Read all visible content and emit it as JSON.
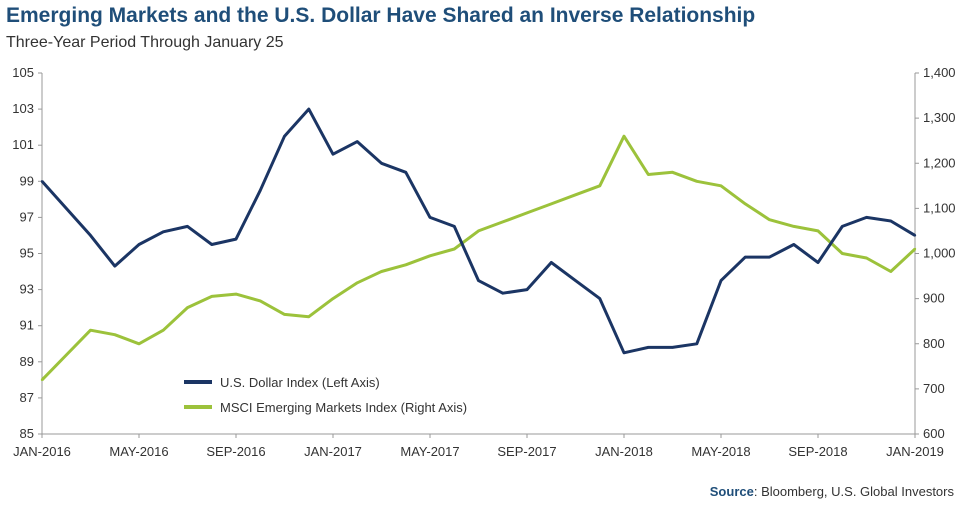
{
  "header": {
    "title": "Emerging Markets and the U.S. Dollar Have Shared an Inverse Relationship",
    "subtitle": "Three-Year Period Through January 25"
  },
  "footer": {
    "source_label": "Source",
    "source_text": ": Bloomberg, U.S. Global Investors"
  },
  "colors": {
    "usd": "#1b3564",
    "msci": "#9cc23b",
    "axis": "#999999"
  },
  "chart_data": {
    "type": "line",
    "title": "Emerging Markets and the U.S. Dollar Have Shared an Inverse Relationship",
    "subtitle": "Three-Year Period Through January 25",
    "x_ticks": [
      "JAN-2016",
      "MAY-2016",
      "SEP-2016",
      "JAN-2017",
      "MAY-2017",
      "SEP-2017",
      "JAN-2018",
      "MAY-2018",
      "SEP-2018",
      "JAN-2019"
    ],
    "x_range": [
      "2016-01",
      "2019-01"
    ],
    "left_axis": {
      "ylim": [
        85,
        105
      ],
      "ticks": [
        85,
        87,
        89,
        91,
        93,
        95,
        97,
        99,
        101,
        103,
        105
      ]
    },
    "right_axis": {
      "ylim": [
        600,
        1400
      ],
      "ticks": [
        "600",
        "700",
        "800",
        "900",
        "1,000",
        "1,100",
        "1,200",
        "1,300",
        "1,400"
      ]
    },
    "legend_position": "bottom-left",
    "series": [
      {
        "name": "U.S. Dollar Index (Left Axis)",
        "axis": "left",
        "x": [
          "2016-01",
          "2016-02",
          "2016-03",
          "2016-04",
          "2016-05",
          "2016-06",
          "2016-07",
          "2016-08",
          "2016-09",
          "2016-10",
          "2016-11",
          "2016-12",
          "2017-01",
          "2017-02",
          "2017-03",
          "2017-04",
          "2017-05",
          "2017-06",
          "2017-07",
          "2017-08",
          "2017-09",
          "2017-10",
          "2017-11",
          "2017-12",
          "2018-01",
          "2018-02",
          "2018-03",
          "2018-04",
          "2018-05",
          "2018-06",
          "2018-07",
          "2018-08",
          "2018-09",
          "2018-10",
          "2018-11",
          "2018-12",
          "2019-01"
        ],
        "values": [
          99.0,
          97.5,
          96.0,
          94.3,
          95.5,
          96.2,
          96.5,
          95.5,
          95.8,
          98.5,
          101.5,
          103.0,
          100.5,
          101.2,
          100.0,
          99.5,
          97.0,
          96.5,
          93.5,
          92.8,
          93.0,
          94.5,
          93.5,
          92.5,
          89.5,
          89.8,
          89.8,
          90.0,
          93.5,
          94.8,
          94.8,
          95.5,
          94.5,
          96.5,
          97.0,
          96.8,
          96.0
        ]
      },
      {
        "name": "MSCI Emerging Markets Index (Right Axis)",
        "axis": "right",
        "x": [
          "2016-01",
          "2016-02",
          "2016-03",
          "2016-04",
          "2016-05",
          "2016-06",
          "2016-07",
          "2016-08",
          "2016-09",
          "2016-10",
          "2016-11",
          "2016-12",
          "2017-01",
          "2017-02",
          "2017-03",
          "2017-04",
          "2017-05",
          "2017-06",
          "2017-07",
          "2017-08",
          "2017-09",
          "2017-10",
          "2017-11",
          "2017-12",
          "2018-01",
          "2018-02",
          "2018-03",
          "2018-04",
          "2018-05",
          "2018-06",
          "2018-07",
          "2018-08",
          "2018-09",
          "2018-10",
          "2018-11",
          "2018-12",
          "2019-01"
        ],
        "values": [
          720,
          775,
          830,
          820,
          800,
          830,
          880,
          905,
          910,
          895,
          865,
          860,
          900,
          935,
          960,
          975,
          995,
          1010,
          1050,
          1070,
          1090,
          1110,
          1130,
          1150,
          1260,
          1175,
          1180,
          1160,
          1150,
          1110,
          1075,
          1060,
          1050,
          1000,
          990,
          960,
          1010
        ]
      }
    ]
  }
}
